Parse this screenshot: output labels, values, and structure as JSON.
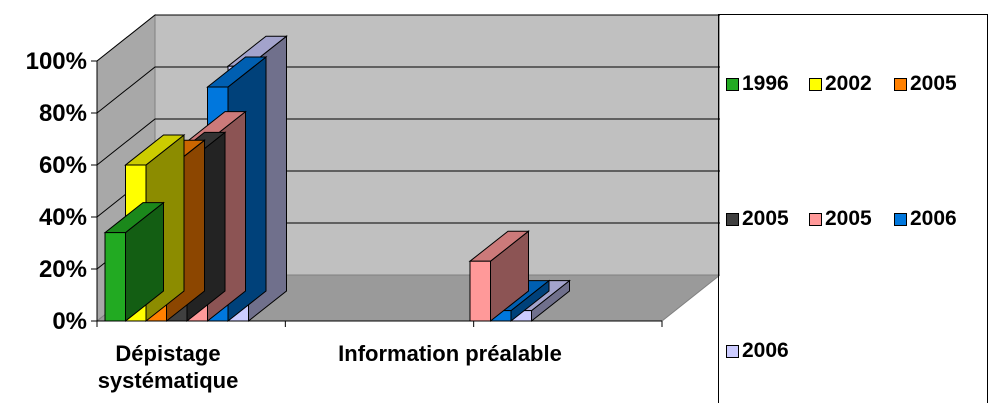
{
  "chart_data": {
    "type": "bar",
    "three_d": true,
    "categories": [
      "Dépistage systématique",
      "Information préalable"
    ],
    "category_lines": [
      [
        "Dépistage",
        "systématique"
      ],
      [
        "Information préalable"
      ]
    ],
    "y_ticks": [
      "0%",
      "20%",
      "40%",
      "60%",
      "80%",
      "100%"
    ],
    "ylim": [
      0,
      100
    ],
    "grid": true,
    "legend_position": "right",
    "series": [
      {
        "name": "1996",
        "color": "#22aa22",
        "values": [
          34,
          null
        ]
      },
      {
        "name": "2002",
        "color": "#ffff00",
        "values": [
          60,
          null
        ]
      },
      {
        "name": "2005",
        "color": "#ff8000",
        "values": [
          58,
          null
        ]
      },
      {
        "name": "2005",
        "color": "#404040",
        "values": [
          61,
          null
        ]
      },
      {
        "name": "2005",
        "color": "#ff9999",
        "values": [
          69,
          23
        ]
      },
      {
        "name": "2006",
        "color": "#0077dd",
        "values": [
          90,
          4
        ]
      },
      {
        "name": "2006",
        "color": "#ccccff",
        "values": [
          98,
          4
        ]
      }
    ]
  }
}
